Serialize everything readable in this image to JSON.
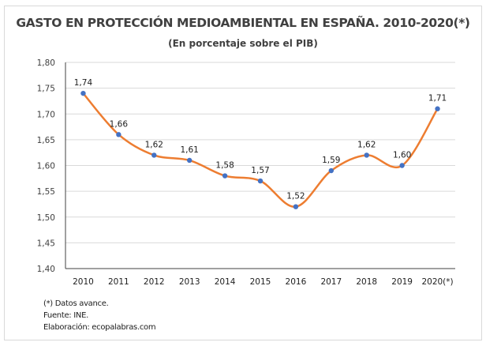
{
  "chart_data": {
    "type": "line",
    "title": "GASTO EN PROTECCIÓN MEDIOAMBIENTAL EN ESPAÑA. 2010-2020(*)",
    "subtitle": "(En porcentaje sobre el PIB)",
    "xlabel": "",
    "ylabel": "",
    "categories": [
      "2010",
      "2011",
      "2012",
      "2013",
      "2014",
      "2015",
      "2016",
      "2017",
      "2018",
      "2019",
      "2020(*)"
    ],
    "values": [
      1.74,
      1.66,
      1.62,
      1.61,
      1.58,
      1.57,
      1.52,
      1.59,
      1.62,
      1.6,
      1.71
    ],
    "data_labels": [
      "1,74",
      "1,66",
      "1,62",
      "1,61",
      "1,58",
      "1,57",
      "1,52",
      "1,59",
      "1,62",
      "1,60",
      "1,71"
    ],
    "ylim": [
      1.4,
      1.8
    ],
    "yticks": [
      "1,40",
      "1,45",
      "1,50",
      "1,55",
      "1,60",
      "1,65",
      "1,70",
      "1,75",
      "1,80"
    ],
    "grid": true,
    "smooth": true,
    "line_color": "#ed7d31",
    "marker_color": "#4472c4"
  },
  "notes": [
    "(*) Datos avance.",
    "Fuente: INE.",
    "Elaboración: ecopalabras.com"
  ]
}
